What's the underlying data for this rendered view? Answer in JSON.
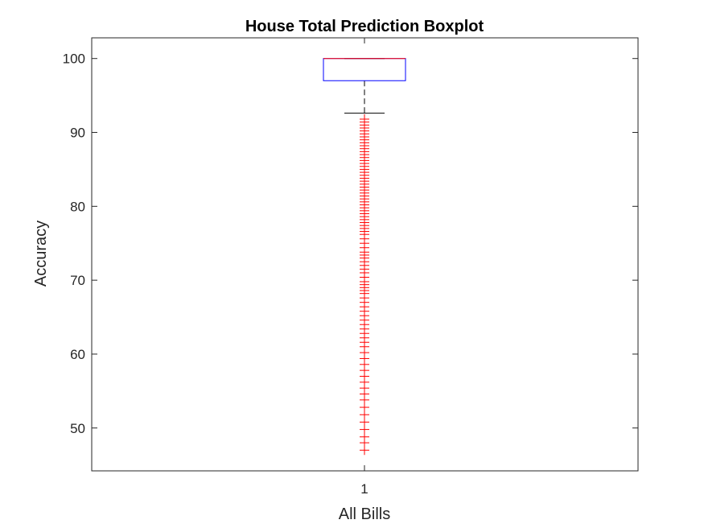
{
  "chart_data": {
    "type": "boxplot",
    "title": "House Total Prediction Boxplot",
    "xlabel": "All Bills",
    "ylabel": "Accuracy",
    "categories": [
      "1"
    ],
    "ylim": [
      44.2,
      102.8
    ],
    "yticks": [
      50,
      60,
      70,
      80,
      90,
      100
    ],
    "grid": false,
    "box": {
      "category": "1",
      "q1": 97.0,
      "median": 100.0,
      "q3": 100.0,
      "whisker_low": 92.6,
      "whisker_high": 100.0
    },
    "outliers": [
      91.8,
      91.4,
      91.0,
      90.6,
      90.2,
      89.8,
      89.4,
      89.0,
      88.6,
      88.2,
      87.8,
      87.4,
      87.0,
      86.6,
      86.2,
      85.8,
      85.4,
      85.0,
      84.6,
      84.2,
      83.8,
      83.4,
      83.0,
      82.6,
      82.2,
      81.8,
      81.4,
      81.0,
      80.6,
      80.2,
      79.8,
      79.4,
      79.0,
      78.6,
      78.2,
      77.8,
      77.4,
      77.0,
      76.6,
      76.2,
      75.6,
      75.0,
      74.4,
      73.8,
      73.4,
      73.0,
      72.5,
      72.0,
      71.5,
      71.0,
      70.4,
      69.8,
      69.4,
      69.0,
      68.6,
      68.2,
      67.6,
      67.0,
      66.4,
      65.8,
      65.2,
      64.6,
      64.0,
      63.4,
      62.8,
      62.2,
      61.6,
      61.0,
      60.2,
      59.4,
      58.6,
      57.8,
      57.0,
      56.2,
      55.4,
      54.6,
      53.8,
      52.8,
      51.8,
      50.8,
      49.8,
      48.8,
      48.0,
      47.0
    ],
    "colors": {
      "box": "#0000ff",
      "median": "#ff0000",
      "whisker": "#000000",
      "outlier": "#ff0000",
      "axis": "#262626"
    }
  }
}
